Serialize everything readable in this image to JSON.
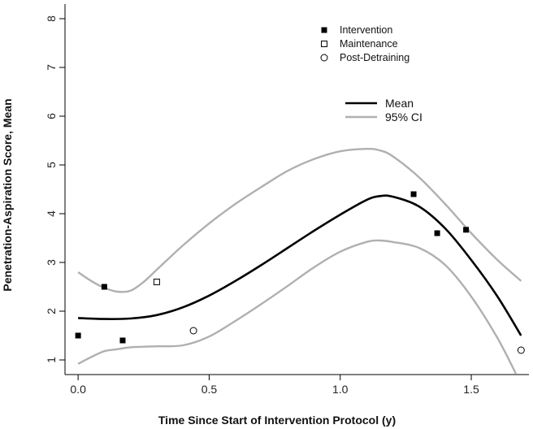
{
  "chart_data": {
    "type": "scatter",
    "title": "",
    "xlabel": "Time Since Start of Intervention Protocol (y)",
    "ylabel": "Penetration-Aspiration Score, Mean",
    "xlim": [
      -0.05,
      1.72
    ],
    "ylim": [
      0.7,
      8.3
    ],
    "xticks": [
      0.0,
      0.5,
      1.0,
      1.5
    ],
    "xtick_labels": [
      "0.0",
      "0.5",
      "1.0",
      "1.5"
    ],
    "yticks": [
      1,
      2,
      3,
      4,
      5,
      6,
      7,
      8
    ],
    "ytick_labels": [
      "1",
      "2",
      "3",
      "4",
      "5",
      "6",
      "7",
      "8"
    ],
    "grid": false,
    "legend_position": "top-right",
    "point_series": [
      {
        "name": "Intervention",
        "marker": "filled-square",
        "x": [
          0.0,
          0.1,
          0.17,
          1.28,
          1.37,
          1.48
        ],
        "y": [
          1.5,
          2.5,
          1.4,
          4.4,
          3.6,
          3.67
        ]
      },
      {
        "name": "Maintenance",
        "marker": "open-square",
        "x": [
          0.3
        ],
        "y": [
          2.6
        ]
      },
      {
        "name": "Post-Detraining",
        "marker": "open-circle",
        "x": [
          0.44,
          1.69
        ],
        "y": [
          1.6,
          1.2
        ]
      }
    ],
    "line_series": [
      {
        "name": "Mean",
        "color": "#000000",
        "x": [
          0.0,
          0.1,
          0.2,
          0.3,
          0.4,
          0.5,
          0.6,
          0.7,
          0.8,
          0.9,
          1.0,
          1.1,
          1.15,
          1.2,
          1.3,
          1.4,
          1.5,
          1.6,
          1.69
        ],
        "y": [
          1.86,
          1.84,
          1.85,
          1.92,
          2.08,
          2.32,
          2.62,
          2.95,
          3.3,
          3.65,
          3.98,
          4.28,
          4.36,
          4.35,
          4.15,
          3.7,
          3.05,
          2.3,
          1.5
        ]
      },
      {
        "name": "95% CI",
        "color": "#b0b0b0",
        "x": [
          0.0,
          0.05,
          0.1,
          0.15,
          0.2,
          0.25,
          0.3,
          0.4,
          0.5,
          0.6,
          0.7,
          0.8,
          0.9,
          1.0,
          1.1,
          1.15,
          1.2,
          1.3,
          1.4,
          1.5,
          1.6,
          1.69
        ],
        "y": [
          2.8,
          2.62,
          2.48,
          2.4,
          2.42,
          2.6,
          2.85,
          3.35,
          3.8,
          4.2,
          4.55,
          4.88,
          5.12,
          5.28,
          5.33,
          5.3,
          5.18,
          4.75,
          4.2,
          3.6,
          3.05,
          2.62
        ]
      },
      {
        "name": "",
        "color": "#b0b0b0",
        "x": [
          0.0,
          0.05,
          0.1,
          0.15,
          0.2,
          0.3,
          0.4,
          0.5,
          0.6,
          0.7,
          0.8,
          0.9,
          1.0,
          1.1,
          1.15,
          1.2,
          1.3,
          1.4,
          1.5,
          1.6,
          1.67
        ],
        "y": [
          0.92,
          1.06,
          1.18,
          1.22,
          1.26,
          1.28,
          1.3,
          1.48,
          1.8,
          2.15,
          2.52,
          2.9,
          3.22,
          3.42,
          3.45,
          3.42,
          3.3,
          2.95,
          2.3,
          1.45,
          0.72
        ]
      }
    ],
    "legends": [
      {
        "entries": [
          {
            "label": "Intervention",
            "marker": "filled-square"
          },
          {
            "label": "Maintenance",
            "marker": "open-square"
          },
          {
            "label": "Post-Detraining",
            "marker": "open-circle"
          }
        ]
      },
      {
        "entries": [
          {
            "label": "Mean",
            "line_color": "#000000"
          },
          {
            "label": "95% CI",
            "line_color": "#b0b0b0"
          }
        ]
      }
    ]
  }
}
